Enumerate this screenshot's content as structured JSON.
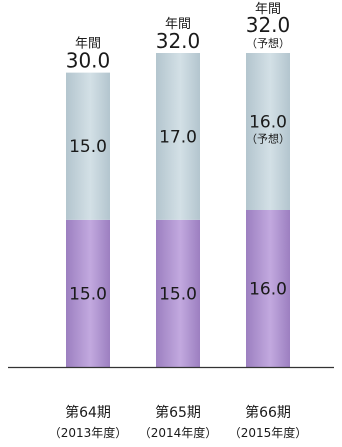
{
  "chart_data": {
    "type": "bar",
    "stacked": true,
    "categories": [
      "第64期",
      "第65期",
      "第66期"
    ],
    "category_years": [
      "（2013年度）",
      "（2014年度）",
      "（2015年度）"
    ],
    "series": [
      {
        "key": "lower",
        "values": [
          15.0,
          15.0,
          16.0
        ],
        "labels": [
          "15.0",
          "15.0",
          "16.0"
        ],
        "notes": [
          "",
          "",
          ""
        ]
      },
      {
        "key": "upper",
        "values": [
          15.0,
          17.0,
          16.0
        ],
        "labels": [
          "15.0",
          "17.0",
          "16.0"
        ],
        "notes": [
          "",
          "",
          "（予想）"
        ]
      }
    ],
    "totals": {
      "prefix": "年間",
      "values": [
        30.0,
        32.0,
        32.0
      ],
      "labels": [
        "30.0",
        "32.0",
        "32.0"
      ],
      "notes": [
        "",
        "",
        "（予想）"
      ]
    },
    "ylim": [
      0,
      32.0
    ],
    "colors": {
      "lower": "#a98bcb",
      "upper": "#c0d0d8",
      "axis": "#333333"
    },
    "grid": false,
    "legend": "none"
  }
}
